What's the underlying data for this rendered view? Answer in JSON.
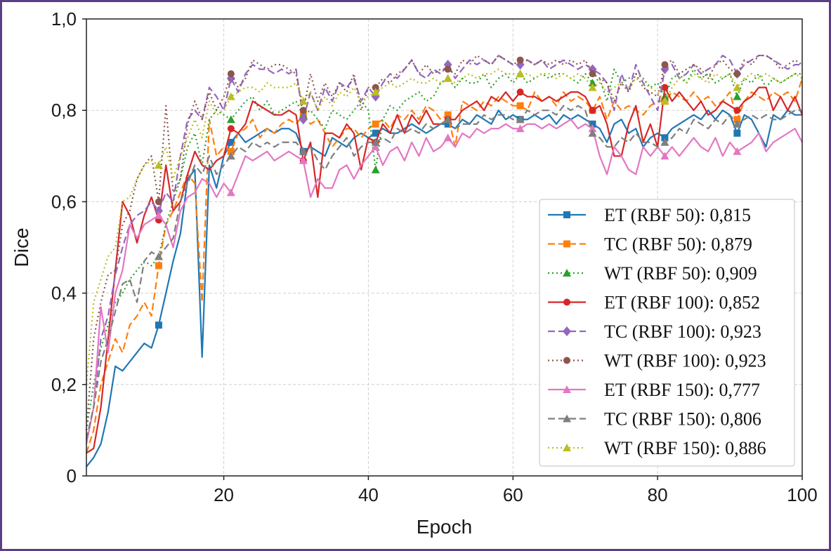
{
  "chart_data": {
    "type": "line",
    "xlabel": "Epoch",
    "ylabel": "Dice",
    "xlim": [
      1,
      100
    ],
    "ylim": [
      0,
      1.0
    ],
    "x_ticks": [
      20,
      40,
      60,
      80,
      100
    ],
    "x_tick_labels": [
      "20",
      "40",
      "60",
      "80",
      "100"
    ],
    "y_ticks": [
      0,
      0.2,
      0.4,
      0.6,
      0.8,
      1.0
    ],
    "y_tick_labels": [
      "0",
      "0,2",
      "0,4",
      "0,6",
      "0,8",
      "1,0"
    ],
    "grid": true,
    "legend_position": "lower-right",
    "marker_every": 10,
    "x": [
      1,
      2,
      3,
      4,
      5,
      6,
      7,
      8,
      9,
      10,
      11,
      12,
      13,
      14,
      15,
      16,
      17,
      18,
      19,
      20,
      21,
      22,
      23,
      24,
      25,
      26,
      27,
      28,
      29,
      30,
      31,
      32,
      33,
      34,
      35,
      36,
      37,
      38,
      39,
      40,
      41,
      42,
      43,
      44,
      45,
      46,
      47,
      48,
      49,
      50,
      51,
      52,
      53,
      54,
      55,
      56,
      57,
      58,
      59,
      60,
      61,
      62,
      63,
      64,
      65,
      66,
      67,
      68,
      69,
      70,
      71,
      72,
      73,
      74,
      75,
      76,
      77,
      78,
      79,
      80,
      81,
      82,
      83,
      84,
      85,
      86,
      87,
      88,
      89,
      90,
      91,
      92,
      93,
      94,
      95,
      96,
      97,
      98,
      99,
      100
    ],
    "series": [
      {
        "label": "ET (RBF 50): 0,815",
        "color": "#1f77b4",
        "dash": "solid",
        "marker": "square",
        "values": [
          0.02,
          0.04,
          0.07,
          0.14,
          0.24,
          0.23,
          0.25,
          0.27,
          0.29,
          0.28,
          0.33,
          0.4,
          0.47,
          0.53,
          0.65,
          0.67,
          0.26,
          0.68,
          0.63,
          0.7,
          0.73,
          0.75,
          0.73,
          0.74,
          0.75,
          0.76,
          0.75,
          0.76,
          0.76,
          0.75,
          0.71,
          0.72,
          0.71,
          0.7,
          0.74,
          0.73,
          0.72,
          0.74,
          0.75,
          0.74,
          0.75,
          0.76,
          0.75,
          0.75,
          0.76,
          0.77,
          0.76,
          0.75,
          0.76,
          0.77,
          0.77,
          0.76,
          0.78,
          0.77,
          0.79,
          0.78,
          0.77,
          0.8,
          0.78,
          0.79,
          0.78,
          0.78,
          0.79,
          0.78,
          0.79,
          0.77,
          0.79,
          0.78,
          0.79,
          0.78,
          0.77,
          0.76,
          0.73,
          0.77,
          0.78,
          0.75,
          0.76,
          0.72,
          0.74,
          0.75,
          0.74,
          0.76,
          0.77,
          0.78,
          0.79,
          0.78,
          0.8,
          0.78,
          0.8,
          0.79,
          0.75,
          0.79,
          0.78,
          0.75,
          0.72,
          0.79,
          0.78,
          0.8,
          0.79,
          0.79
        ]
      },
      {
        "label": "TC (RBF 50): 0,879",
        "color": "#ff7f0e",
        "dash": "dashed",
        "marker": "square",
        "values": [
          0.05,
          0.1,
          0.2,
          0.25,
          0.3,
          0.27,
          0.33,
          0.35,
          0.38,
          0.35,
          0.46,
          0.55,
          0.58,
          0.62,
          0.66,
          0.64,
          0.38,
          0.78,
          0.7,
          0.72,
          0.71,
          0.75,
          0.76,
          0.78,
          0.74,
          0.76,
          0.75,
          0.77,
          0.78,
          0.77,
          0.79,
          0.77,
          0.78,
          0.75,
          0.72,
          0.74,
          0.76,
          0.76,
          0.74,
          0.76,
          0.77,
          0.78,
          0.76,
          0.79,
          0.78,
          0.8,
          0.78,
          0.81,
          0.8,
          0.78,
          0.79,
          0.72,
          0.82,
          0.81,
          0.8,
          0.82,
          0.81,
          0.83,
          0.82,
          0.81,
          0.81,
          0.8,
          0.84,
          0.82,
          0.83,
          0.81,
          0.84,
          0.82,
          0.83,
          0.82,
          0.8,
          0.83,
          0.78,
          0.82,
          0.8,
          0.81,
          0.8,
          0.79,
          0.81,
          0.82,
          0.82,
          0.84,
          0.83,
          0.82,
          0.84,
          0.82,
          0.83,
          0.81,
          0.82,
          0.84,
          0.78,
          0.82,
          0.84,
          0.83,
          0.82,
          0.84,
          0.83,
          0.84,
          0.82,
          0.87
        ]
      },
      {
        "label": "WT (RBF 50): 0,909",
        "color": "#2ca02c",
        "dash": "dotted",
        "marker": "triangle",
        "values": [
          0.1,
          0.2,
          0.28,
          0.33,
          0.38,
          0.4,
          0.43,
          0.45,
          0.47,
          0.46,
          0.48,
          0.55,
          0.6,
          0.65,
          0.72,
          0.75,
          0.68,
          0.78,
          0.8,
          0.79,
          0.78,
          0.8,
          0.82,
          0.83,
          0.8,
          0.82,
          0.79,
          0.8,
          0.81,
          0.82,
          0.79,
          0.8,
          0.78,
          0.76,
          0.8,
          0.79,
          0.78,
          0.8,
          0.82,
          0.8,
          0.67,
          0.78,
          0.81,
          0.8,
          0.82,
          0.83,
          0.84,
          0.82,
          0.83,
          0.86,
          0.87,
          0.85,
          0.87,
          0.86,
          0.86,
          0.88,
          0.85,
          0.87,
          0.88,
          0.86,
          0.88,
          0.86,
          0.87,
          0.88,
          0.87,
          0.88,
          0.88,
          0.87,
          0.86,
          0.88,
          0.86,
          0.87,
          0.82,
          0.89,
          0.86,
          0.87,
          0.88,
          0.87,
          0.85,
          0.86,
          0.83,
          0.87,
          0.88,
          0.86,
          0.89,
          0.87,
          0.88,
          0.86,
          0.87,
          0.88,
          0.83,
          0.87,
          0.86,
          0.88,
          0.85,
          0.87,
          0.86,
          0.87,
          0.88,
          0.88
        ]
      },
      {
        "label": "ET (RBF 100): 0,852",
        "color": "#d62728",
        "dash": "solid",
        "marker": "circle",
        "values": [
          0.05,
          0.06,
          0.15,
          0.3,
          0.45,
          0.6,
          0.57,
          0.51,
          0.57,
          0.61,
          0.56,
          0.68,
          0.58,
          0.6,
          0.66,
          0.71,
          0.68,
          0.67,
          0.69,
          0.7,
          0.76,
          0.75,
          0.77,
          0.82,
          0.81,
          0.8,
          0.79,
          0.79,
          0.8,
          0.79,
          0.69,
          0.73,
          0.61,
          0.75,
          0.75,
          0.74,
          0.77,
          0.75,
          0.67,
          0.74,
          0.73,
          0.77,
          0.75,
          0.79,
          0.75,
          0.79,
          0.77,
          0.8,
          0.77,
          0.77,
          0.78,
          0.78,
          0.8,
          0.81,
          0.82,
          0.8,
          0.83,
          0.82,
          0.84,
          0.82,
          0.84,
          0.83,
          0.83,
          0.82,
          0.83,
          0.82,
          0.83,
          0.84,
          0.84,
          0.83,
          0.8,
          0.81,
          0.77,
          0.7,
          0.7,
          0.77,
          0.81,
          0.73,
          0.77,
          0.72,
          0.85,
          0.82,
          0.84,
          0.82,
          0.8,
          0.82,
          0.79,
          0.8,
          0.82,
          0.81,
          0.8,
          0.82,
          0.83,
          0.85,
          0.85,
          0.8,
          0.83,
          0.8,
          0.83,
          0.79
        ]
      },
      {
        "label": "TC (RBF 100): 0,923",
        "color": "#9467bd",
        "dash": "dashed",
        "marker": "diamond",
        "values": [
          0.08,
          0.15,
          0.3,
          0.35,
          0.44,
          0.5,
          0.55,
          0.57,
          0.58,
          0.6,
          0.58,
          0.62,
          0.6,
          0.7,
          0.78,
          0.8,
          0.78,
          0.85,
          0.83,
          0.8,
          0.87,
          0.84,
          0.88,
          0.9,
          0.89,
          0.89,
          0.88,
          0.89,
          0.88,
          0.89,
          0.78,
          0.84,
          0.8,
          0.85,
          0.82,
          0.86,
          0.85,
          0.87,
          0.82,
          0.85,
          0.83,
          0.86,
          0.88,
          0.87,
          0.89,
          0.91,
          0.88,
          0.87,
          0.89,
          0.88,
          0.9,
          0.87,
          0.89,
          0.91,
          0.9,
          0.91,
          0.9,
          0.92,
          0.91,
          0.9,
          0.9,
          0.91,
          0.9,
          0.91,
          0.89,
          0.9,
          0.91,
          0.9,
          0.89,
          0.9,
          0.89,
          0.88,
          0.86,
          0.8,
          0.88,
          0.84,
          0.9,
          0.86,
          0.83,
          0.8,
          0.89,
          0.9,
          0.87,
          0.88,
          0.9,
          0.88,
          0.89,
          0.9,
          0.92,
          0.91,
          0.88,
          0.9,
          0.91,
          0.92,
          0.92,
          0.91,
          0.9,
          0.89,
          0.9,
          0.9
        ]
      },
      {
        "label": "WT (RBF 100): 0,923",
        "color": "#8c564b",
        "dash": "dotted",
        "marker": "circle",
        "values": [
          0.1,
          0.3,
          0.38,
          0.44,
          0.45,
          0.55,
          0.58,
          0.65,
          0.68,
          0.7,
          0.6,
          0.81,
          0.62,
          0.65,
          0.77,
          0.82,
          0.78,
          0.84,
          0.8,
          0.83,
          0.88,
          0.85,
          0.87,
          0.91,
          0.9,
          0.89,
          0.9,
          0.9,
          0.89,
          0.88,
          0.8,
          0.88,
          0.82,
          0.86,
          0.83,
          0.86,
          0.84,
          0.88,
          0.8,
          0.85,
          0.85,
          0.87,
          0.86,
          0.88,
          0.89,
          0.91,
          0.88,
          0.9,
          0.88,
          0.89,
          0.89,
          0.88,
          0.91,
          0.9,
          0.92,
          0.91,
          0.9,
          0.92,
          0.91,
          0.9,
          0.91,
          0.91,
          0.9,
          0.91,
          0.9,
          0.91,
          0.9,
          0.91,
          0.9,
          0.91,
          0.88,
          0.87,
          0.86,
          0.82,
          0.86,
          0.84,
          0.88,
          0.85,
          0.84,
          0.83,
          0.9,
          0.91,
          0.88,
          0.89,
          0.9,
          0.89,
          0.87,
          0.9,
          0.91,
          0.89,
          0.88,
          0.91,
          0.9,
          0.92,
          0.92,
          0.91,
          0.89,
          0.9,
          0.91,
          0.9
        ]
      },
      {
        "label": "ET (RBF 150): 0,777",
        "color": "#e377c2",
        "dash": "solid",
        "marker": "triangle",
        "values": [
          0.07,
          0.15,
          0.37,
          0.27,
          0.4,
          0.45,
          0.55,
          0.52,
          0.55,
          0.56,
          0.57,
          0.55,
          0.5,
          0.58,
          0.61,
          0.62,
          0.65,
          0.64,
          0.61,
          0.64,
          0.62,
          0.66,
          0.7,
          0.69,
          0.7,
          0.71,
          0.69,
          0.7,
          0.71,
          0.7,
          0.69,
          0.61,
          0.65,
          0.63,
          0.63,
          0.67,
          0.68,
          0.65,
          0.68,
          0.7,
          0.72,
          0.68,
          0.71,
          0.72,
          0.69,
          0.73,
          0.7,
          0.74,
          0.71,
          0.72,
          0.74,
          0.72,
          0.75,
          0.74,
          0.76,
          0.75,
          0.76,
          0.76,
          0.77,
          0.76,
          0.76,
          0.77,
          0.77,
          0.76,
          0.77,
          0.76,
          0.77,
          0.78,
          0.76,
          0.77,
          0.76,
          0.7,
          0.66,
          0.72,
          0.7,
          0.67,
          0.66,
          0.72,
          0.7,
          0.72,
          0.7,
          0.72,
          0.7,
          0.72,
          0.74,
          0.72,
          0.71,
          0.74,
          0.7,
          0.73,
          0.71,
          0.72,
          0.73,
          0.75,
          0.71,
          0.73,
          0.74,
          0.75,
          0.76,
          0.73
        ]
      },
      {
        "label": "TC (RBF 150): 0,806",
        "color": "#7f7f7f",
        "dash": "dashed",
        "marker": "triangle",
        "values": [
          0.08,
          0.15,
          0.25,
          0.3,
          0.36,
          0.42,
          0.43,
          0.38,
          0.47,
          0.49,
          0.48,
          0.5,
          0.52,
          0.6,
          0.64,
          0.68,
          0.66,
          0.7,
          0.66,
          0.68,
          0.7,
          0.72,
          0.71,
          0.73,
          0.72,
          0.73,
          0.72,
          0.73,
          0.73,
          0.73,
          0.71,
          0.72,
          0.69,
          0.67,
          0.7,
          0.72,
          0.74,
          0.7,
          0.72,
          0.73,
          0.73,
          0.74,
          0.73,
          0.76,
          0.75,
          0.76,
          0.75,
          0.77,
          0.76,
          0.77,
          0.78,
          0.76,
          0.77,
          0.77,
          0.77,
          0.79,
          0.78,
          0.79,
          0.79,
          0.78,
          0.78,
          0.8,
          0.79,
          0.8,
          0.8,
          0.79,
          0.81,
          0.8,
          0.81,
          0.8,
          0.75,
          0.74,
          0.72,
          0.72,
          0.74,
          0.73,
          0.75,
          0.73,
          0.73,
          0.72,
          0.73,
          0.74,
          0.76,
          0.75,
          0.78,
          0.77,
          0.76,
          0.78,
          0.77,
          0.79,
          0.77,
          0.78,
          0.79,
          0.78,
          0.79,
          0.78,
          0.78,
          0.79,
          0.8,
          0.8
        ]
      },
      {
        "label": "WT (RBF 150): 0,886",
        "color": "#bcbd22",
        "dash": "dotted",
        "marker": "triangle",
        "values": [
          0.2,
          0.38,
          0.43,
          0.48,
          0.5,
          0.6,
          0.61,
          0.65,
          0.68,
          0.69,
          0.68,
          0.72,
          0.65,
          0.7,
          0.74,
          0.78,
          0.74,
          0.82,
          0.79,
          0.8,
          0.83,
          0.84,
          0.85,
          0.85,
          0.84,
          0.86,
          0.85,
          0.85,
          0.85,
          0.86,
          0.82,
          0.84,
          0.8,
          0.83,
          0.81,
          0.84,
          0.83,
          0.85,
          0.82,
          0.83,
          0.84,
          0.85,
          0.86,
          0.85,
          0.86,
          0.87,
          0.86,
          0.86,
          0.87,
          0.86,
          0.87,
          0.86,
          0.87,
          0.88,
          0.87,
          0.88,
          0.88,
          0.89,
          0.88,
          0.88,
          0.88,
          0.88,
          0.87,
          0.88,
          0.88,
          0.87,
          0.88,
          0.87,
          0.88,
          0.87,
          0.85,
          0.86,
          0.84,
          0.85,
          0.86,
          0.85,
          0.87,
          0.86,
          0.85,
          0.84,
          0.82,
          0.85,
          0.87,
          0.86,
          0.88,
          0.87,
          0.86,
          0.88,
          0.87,
          0.88,
          0.85,
          0.87,
          0.88,
          0.87,
          0.88,
          0.87,
          0.86,
          0.87,
          0.88,
          0.87
        ]
      }
    ]
  }
}
